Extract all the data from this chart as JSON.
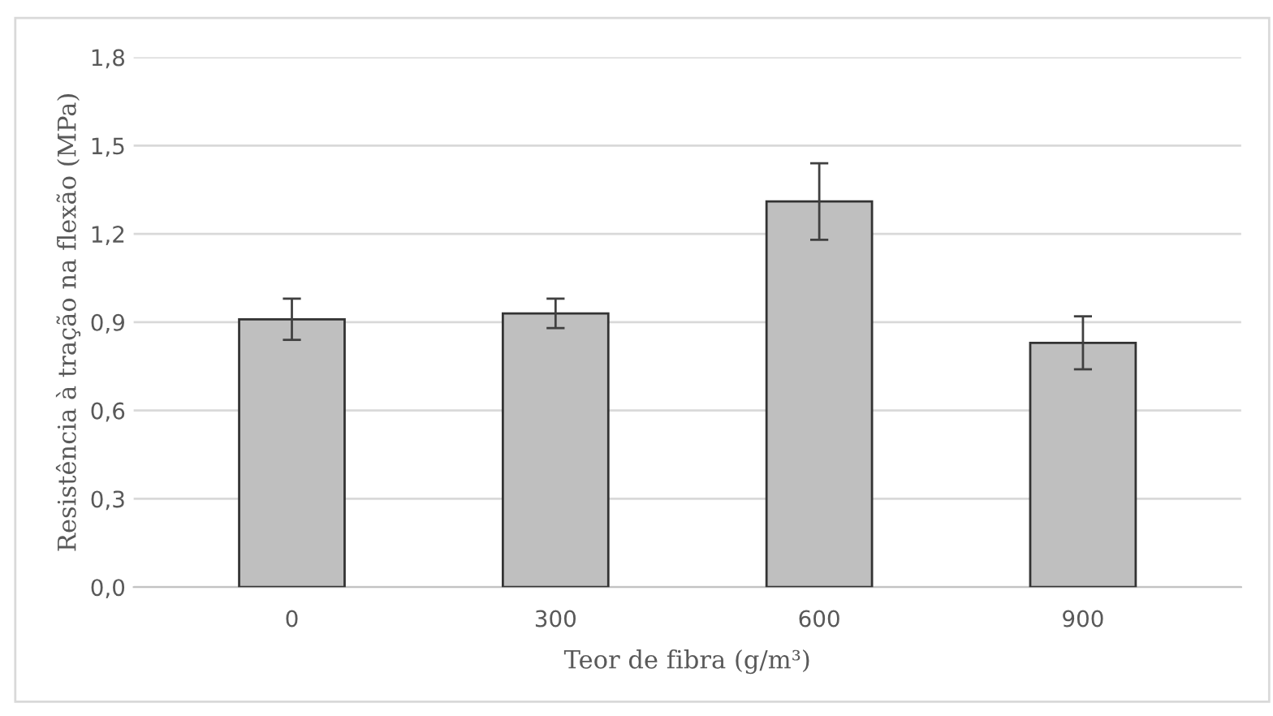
{
  "chart_data": {
    "type": "bar",
    "xlabel": "Teor de fibra (g/m³)",
    "ylabel": "Resistência à tração na flexão (MPa)",
    "categories": [
      "0",
      "300",
      "600",
      "900"
    ],
    "values": [
      0.91,
      0.93,
      1.31,
      0.83
    ],
    "errors": [
      0.07,
      0.05,
      0.13,
      0.09
    ],
    "color": "#bfbfbf",
    "ylim": [
      0,
      1.8
    ],
    "yticks": [
      {
        "value": 0,
        "label": "0,0"
      },
      {
        "value": 0.3,
        "label": "0,3"
      },
      {
        "value": 0.6,
        "label": "0,6"
      },
      {
        "value": 0.9,
        "label": "0,9"
      },
      {
        "value": 1.2,
        "label": "1,2"
      },
      {
        "value": 1.5,
        "label": "1,5"
      },
      {
        "value": 1.8,
        "label": "1,8"
      }
    ],
    "grid": "y"
  }
}
